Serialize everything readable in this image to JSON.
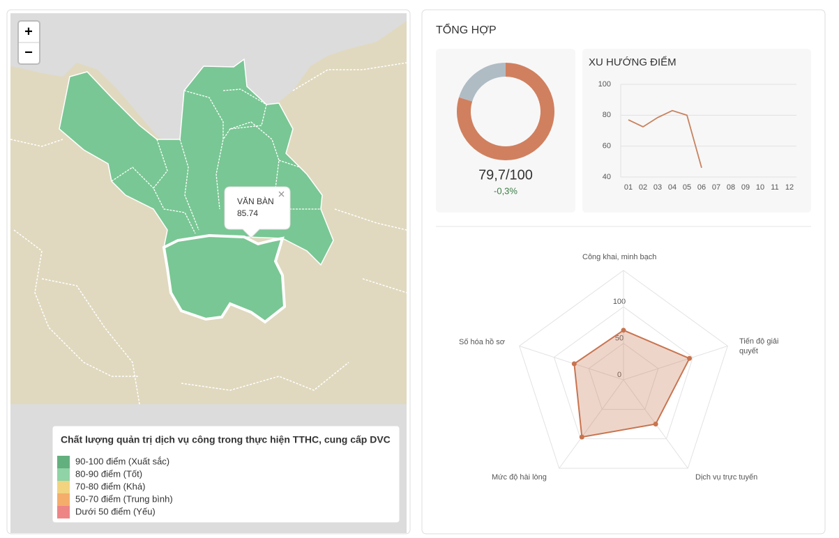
{
  "map": {
    "zoom_in": "+",
    "zoom_out": "−",
    "popup": {
      "name": "VĂN BÀN",
      "value": 85.74
    },
    "legend": {
      "title": "Chất lượng quản trị dịch vụ công trong thực hiện TTHC, cung cấp DVC",
      "items": [
        {
          "label": "90-100 điểm (Xuất sắc)",
          "color": "#63b07f"
        },
        {
          "label": "80-90 điểm (Tốt)",
          "color": "#8fd3a6"
        },
        {
          "label": "70-80 điểm (Khá)",
          "color": "#f2d37f"
        },
        {
          "label": "50-70 điểm (Trung bình)",
          "color": "#f5ad6b"
        },
        {
          "label": "Dưới 50 điểm (Yếu)",
          "color": "#ee8585"
        }
      ]
    }
  },
  "summary": {
    "title": "TỔNG HỢP"
  },
  "chart_data": [
    {
      "type": "pie",
      "value": 79.7,
      "max": 100,
      "value_label": "79,7/100",
      "change": -0.3,
      "change_label": "-0,3%",
      "color": "#d0805f",
      "rest_color": "#b0bcc4"
    },
    {
      "type": "line",
      "title": "XU HƯỚNG ĐIỂM",
      "categories": [
        "01",
        "02",
        "03",
        "04",
        "05",
        "06",
        "07",
        "08",
        "09",
        "10",
        "11",
        "12"
      ],
      "values": [
        77,
        72.5,
        78.5,
        83,
        80,
        46,
        null,
        null,
        null,
        null,
        null,
        null
      ],
      "color": "#c8825f",
      "ylim": [
        40,
        100
      ],
      "yticks": [
        40,
        60,
        80,
        100
      ],
      "grid": true
    },
    {
      "type": "radar",
      "categories": [
        "Công khai, minh bạch",
        "Tiến độ giải quyết",
        "Dịch vụ trực tuyến",
        "Mức độ hài lòng",
        "Số hóa hồ sơ"
      ],
      "values": [
        68,
        95,
        75,
        97,
        71
      ],
      "color": "#c8744f",
      "rlim": [
        0,
        150
      ],
      "rticks": [
        0,
        50,
        100
      ]
    }
  ]
}
